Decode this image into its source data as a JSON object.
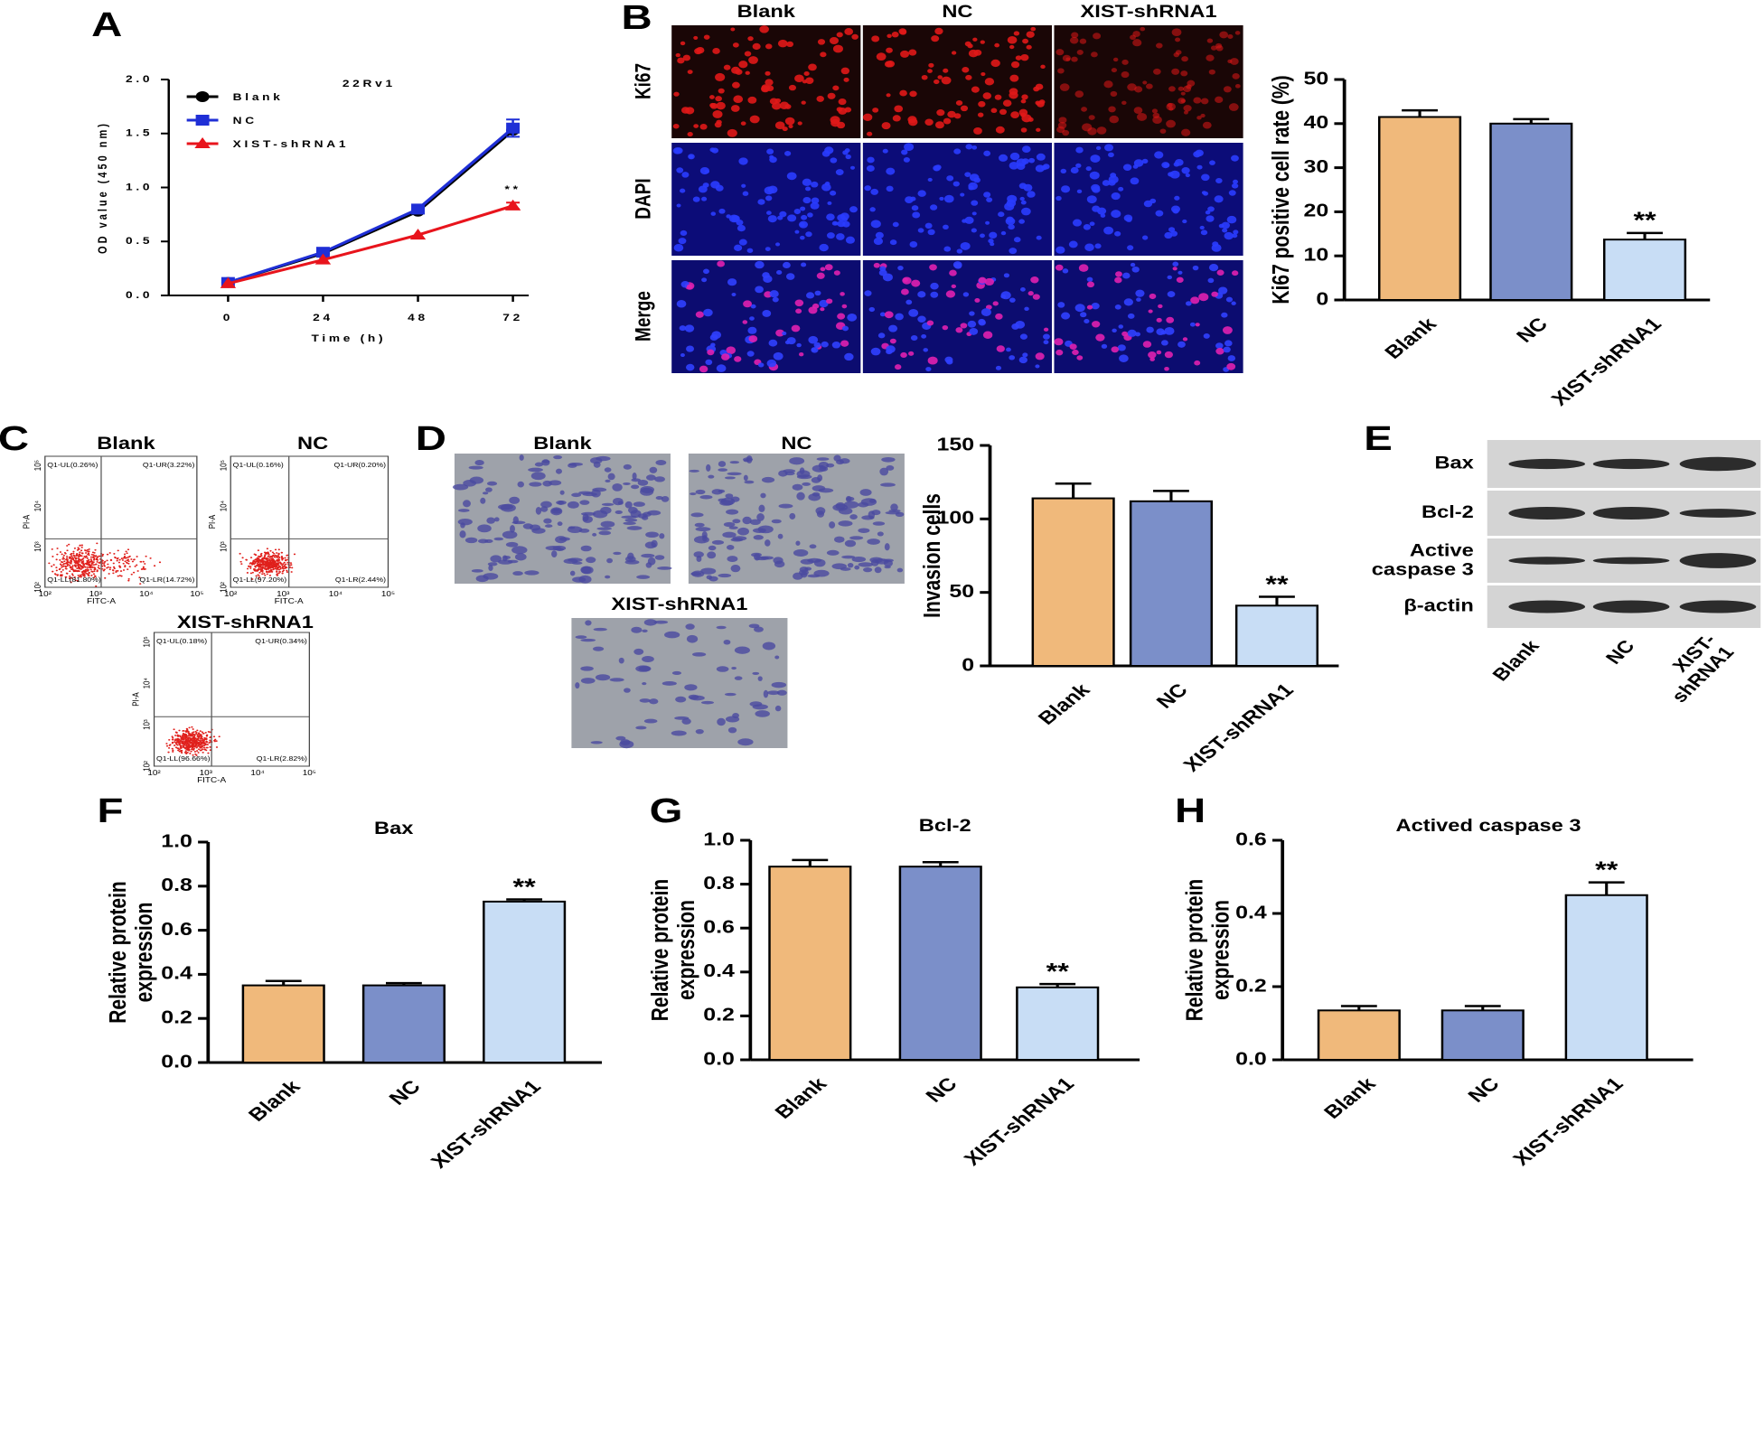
{
  "panel_labels": [
    "A",
    "B",
    "C",
    "D",
    "E",
    "F",
    "G",
    "H"
  ],
  "chart_data": [
    {
      "type": "line",
      "title": "22Rv1",
      "x_label": "Time (h)",
      "y_label": "OD value (450 nm)",
      "x": [
        0,
        24,
        48,
        72
      ],
      "xlim": [
        -15,
        76
      ],
      "xticks": [
        0,
        24,
        48,
        72
      ],
      "ylim": [
        0,
        2.0
      ],
      "yticks": [
        {
          "value": 0,
          "label": "0.0"
        },
        {
          "value": 0.5,
          "label": "0.5"
        },
        {
          "value": 1,
          "label": "1.0"
        },
        {
          "value": 1.5,
          "label": "1.5"
        },
        {
          "value": 2,
          "label": "2.0"
        }
      ],
      "series": [
        {
          "name": "Blank",
          "color": "#000000",
          "marker": "circle",
          "values": [
            0.12,
            0.39,
            0.78,
            1.53
          ],
          "errors": [
            null,
            null,
            null,
            null
          ]
        },
        {
          "name": "NC",
          "color": "#1f2fd6",
          "marker": "square",
          "values": [
            0.12,
            0.4,
            0.8,
            1.55
          ],
          "errors": [
            null,
            null,
            null,
            0.08
          ]
        },
        {
          "name": "XIST-shRNA1",
          "color": "#e8141c",
          "marker": "triangle",
          "values": [
            0.11,
            0.33,
            0.56,
            0.83
          ],
          "errors": [
            null,
            null,
            null,
            0.03
          ]
        }
      ],
      "annotations": [
        {
          "text": "**",
          "series": 2,
          "index": 3
        }
      ]
    },
    {
      "type": "bar",
      "y_label": "Ki67 positive cell rate (%)",
      "categories": [
        "Blank",
        "NC",
        "XIST-shRNA1"
      ],
      "values": [
        41.5,
        40,
        13.7
      ],
      "errors": [
        1.5,
        1,
        1.5
      ],
      "colors": [
        "#f0b97b",
        "#7b8fc9",
        "#c8ddf5"
      ],
      "ylim": [
        0,
        50
      ],
      "yticks": [
        0,
        10,
        20,
        30,
        40,
        50
      ],
      "annotations": [
        {
          "text": "**",
          "index": 2
        }
      ]
    },
    {
      "type": "bar",
      "y_label": "Invasion cells",
      "categories": [
        "Blank",
        "NC",
        "XIST-shRNA1"
      ],
      "values": [
        114,
        112,
        41
      ],
      "errors": [
        10,
        7,
        6
      ],
      "colors": [
        "#f0b97b",
        "#7b8fc9",
        "#c8ddf5"
      ],
      "ylim": [
        0,
        150
      ],
      "yticks": [
        0,
        50,
        100,
        150
      ],
      "annotations": [
        {
          "text": "**",
          "index": 2
        }
      ]
    },
    {
      "type": "bar",
      "title": "Bax",
      "y_label": "Relative protein\nexpression",
      "categories": [
        "Blank",
        "NC",
        "XIST-shRNA1"
      ],
      "values": [
        0.35,
        0.35,
        0.73
      ],
      "errors": [
        0.02,
        0.01,
        0.01
      ],
      "colors": [
        "#f0b97b",
        "#7b8fc9",
        "#c8ddf5"
      ],
      "ylim": [
        0,
        1.0
      ],
      "yticks": [
        {
          "value": 0,
          "label": "0.0"
        },
        0.2,
        0.4,
        0.6,
        0.8,
        {
          "value": 1,
          "label": "1.0"
        }
      ],
      "annotations": [
        {
          "text": "**",
          "index": 2
        }
      ]
    },
    {
      "type": "bar",
      "title": "Bcl-2",
      "y_label": "Relative protein\nexpression",
      "categories": [
        "Blank",
        "NC",
        "XIST-shRNA1"
      ],
      "values": [
        0.88,
        0.88,
        0.33
      ],
      "errors": [
        0.03,
        0.02,
        0.015
      ],
      "colors": [
        "#f0b97b",
        "#7b8fc9",
        "#c8ddf5"
      ],
      "ylim": [
        0,
        1.0
      ],
      "yticks": [
        {
          "value": 0,
          "label": "0.0"
        },
        0.2,
        0.4,
        0.6,
        0.8,
        {
          "value": 1,
          "label": "1.0"
        }
      ],
      "annotations": [
        {
          "text": "**",
          "index": 2
        }
      ]
    },
    {
      "type": "bar",
      "title": "Actived caspase 3",
      "y_label": "Relative protein\nexpression",
      "categories": [
        "Blank",
        "NC",
        "XIST-shRNA1"
      ],
      "values": [
        0.135,
        0.135,
        0.45
      ],
      "errors": [
        0.012,
        0.012,
        0.035
      ],
      "colors": [
        "#f0b97b",
        "#7b8fc9",
        "#c8ddf5"
      ],
      "ylim": [
        0,
        0.6
      ],
      "yticks": [
        {
          "value": 0,
          "label": "0.0"
        },
        0.2,
        0.4,
        0.6
      ],
      "annotations": [
        {
          "text": "**",
          "index": 2
        }
      ]
    }
  ],
  "micrographs": {
    "columns": [
      "Blank",
      "NC",
      "XIST-shRNA1"
    ],
    "rows": [
      "Ki67",
      "DAPI",
      "Merge"
    ]
  },
  "flow_cytometry": {
    "x_label": "FITC-A",
    "y_label": "PI-A",
    "axis_ticks": [
      "10²",
      "10³",
      "10⁴",
      "10⁵"
    ],
    "plots": [
      {
        "title": "Blank",
        "quadrants": [
          "Q1-UL(0.26%)",
          "Q1-UR(3.22%)",
          "Q1-LL(81.80%)",
          "Q1-LR(14.72%)"
        ]
      },
      {
        "title": "NC",
        "quadrants": [
          "Q1-UL(0.16%)",
          "Q1-UR(0.20%)",
          "Q1-LL(97.20%)",
          "Q1-LR(2.44%)"
        ]
      },
      {
        "title": "XIST-shRNA1",
        "quadrants": [
          "Q1-UL(0.18%)",
          "Q1-UR(0.34%)",
          "Q1-LL(96.66%)",
          "Q1-LR(2.82%)"
        ]
      }
    ]
  },
  "invasion_images": [
    "Blank",
    "NC",
    "XIST-shRNA1"
  ],
  "western_blot": {
    "rows": [
      "Bax",
      "Bcl-2",
      "Active\ncaspase 3",
      "β-actin"
    ],
    "columns": [
      "Blank",
      "NC",
      "XIST-\nshRNA1"
    ]
  }
}
